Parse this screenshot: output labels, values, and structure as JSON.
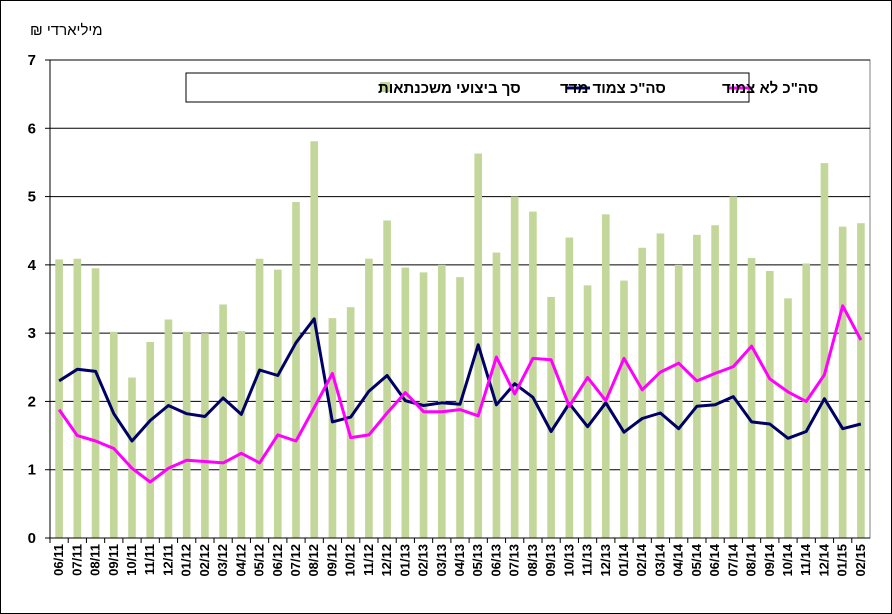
{
  "chart_data": {
    "type": "bar+line",
    "unit_label": "מיליארדי ₪",
    "ylim": [
      0,
      7
    ],
    "yticks": [
      0,
      1,
      2,
      3,
      4,
      5,
      6,
      7
    ],
    "grid": true,
    "legend_position": "top",
    "categories": [
      "06/11",
      "07/11",
      "08/11",
      "09/11",
      "10/11",
      "11/11",
      "12/11",
      "01/12",
      "02/12",
      "03/12",
      "04/12",
      "05/12",
      "06/12",
      "07/12",
      "08/12",
      "09/12",
      "10/12",
      "11/12",
      "12/12",
      "01/13",
      "02/13",
      "03/13",
      "04/13",
      "05/13",
      "06/13",
      "07/13",
      "08/13",
      "09/13",
      "10/13",
      "11/13",
      "12/13",
      "01/14",
      "02/14",
      "03/14",
      "04/14",
      "05/14",
      "06/14",
      "07/14",
      "08/14",
      "09/14",
      "10/14",
      "11/14",
      "12/14",
      "01/15",
      "02/15"
    ],
    "series": [
      {
        "name": "סך ביצועי משכנתאות",
        "kind": "bar",
        "color": "#c4d79b",
        "values": [
          4.08,
          4.09,
          3.95,
          3.02,
          2.35,
          2.87,
          3.2,
          3.02,
          3.0,
          3.42,
          3.03,
          4.09,
          3.93,
          4.92,
          5.81,
          3.22,
          3.38,
          4.09,
          4.65,
          3.96,
          3.89,
          4.0,
          3.82,
          5.63,
          4.18,
          5.0,
          4.78,
          3.53,
          4.4,
          3.7,
          4.74,
          3.77,
          4.25,
          4.46,
          4.0,
          4.44,
          4.58,
          5.0,
          4.1,
          3.91,
          3.51,
          4.02,
          5.49,
          4.56,
          4.61
        ]
      },
      {
        "name": "סה\"כ צמוד מדד",
        "kind": "line",
        "color": "#000066",
        "values": [
          2.3,
          2.47,
          2.44,
          1.82,
          1.42,
          1.72,
          1.94,
          1.82,
          1.78,
          2.05,
          1.81,
          2.46,
          2.38,
          2.86,
          3.21,
          1.7,
          1.77,
          2.15,
          2.38,
          2.01,
          1.94,
          1.98,
          1.96,
          2.83,
          1.95,
          2.26,
          2.06,
          1.56,
          1.97,
          1.63,
          1.98,
          1.55,
          1.75,
          1.83,
          1.6,
          1.93,
          1.95,
          2.07,
          1.7,
          1.67,
          1.46,
          1.56,
          2.04,
          1.6,
          1.67
        ]
      },
      {
        "name": "סה\"כ לא צמוד",
        "kind": "line",
        "color": "#ff00ff",
        "values": [
          1.88,
          1.5,
          1.42,
          1.31,
          1.02,
          0.82,
          1.02,
          1.14,
          1.12,
          1.1,
          1.24,
          1.1,
          1.51,
          1.42,
          1.91,
          2.41,
          1.47,
          1.51,
          1.83,
          2.13,
          1.85,
          1.85,
          1.88,
          1.79,
          2.65,
          2.11,
          2.63,
          2.61,
          1.93,
          2.35,
          2.01,
          2.63,
          2.17,
          2.43,
          2.56,
          2.3,
          2.41,
          2.51,
          2.81,
          2.33,
          2.14,
          2.0,
          2.39,
          3.4,
          2.9
        ]
      }
    ]
  }
}
